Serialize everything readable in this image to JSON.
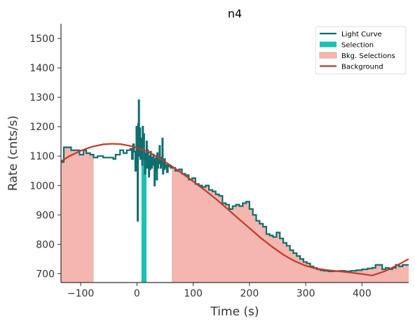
{
  "chart_data": {
    "type": "line",
    "title": "n4",
    "xlabel": "Time (s)",
    "ylabel": "Rate (cnts/s)",
    "xlim": [
      -135,
      483
    ],
    "ylim": [
      670,
      1550
    ],
    "xticks": [
      -100,
      0,
      100,
      200,
      300,
      400
    ],
    "yticks": [
      700,
      800,
      900,
      1000,
      1100,
      1200,
      1300,
      1400,
      1500
    ],
    "xtick_labels": [
      "−100",
      "0",
      "100",
      "200",
      "300",
      "400"
    ],
    "ytick_labels": [
      "700",
      "800",
      "900",
      "1000",
      "1100",
      "1200",
      "1300",
      "1400",
      "1500"
    ],
    "legend": {
      "position": "top-right",
      "entries": [
        {
          "label": "Light Curve",
          "kind": "line",
          "color": "#0f6e6e"
        },
        {
          "label": "Selection",
          "kind": "patch",
          "color": "#1fbfb4"
        },
        {
          "label": "Bkg. Selections",
          "kind": "patch",
          "color": "#f4b6ae"
        },
        {
          "label": "Background",
          "kind": "line",
          "color": "#c0392b"
        }
      ]
    },
    "colors": {
      "light_curve": "#0f6e6e",
      "selection": "#1fbfb4",
      "bkg_selection": "#f4b6ae",
      "bkg_edge": "#e8a59c",
      "background": "#c0392b"
    },
    "selection": [
      [
        8,
        17
      ]
    ],
    "bkg_selections": [
      [
        -135,
        -77
      ],
      [
        62,
        483
      ]
    ],
    "light_curve": [
      [
        -135,
        1080
      ],
      [
        -130,
        1130
      ],
      [
        -122,
        1130
      ],
      [
        -117,
        1120
      ],
      [
        -110,
        1120
      ],
      [
        -102,
        1105
      ],
      [
        -95,
        1120
      ],
      [
        -90,
        1110
      ],
      [
        -83,
        1105
      ],
      [
        -77,
        1095
      ],
      [
        -70,
        1100
      ],
      [
        -60,
        1095
      ],
      [
        -50,
        1095
      ],
      [
        -42,
        1090
      ],
      [
        -38,
        1105
      ],
      [
        -30,
        1120
      ],
      [
        -24,
        1110
      ],
      [
        -18,
        1120
      ],
      [
        -12,
        1125
      ],
      [
        -9,
        1090
      ],
      [
        -7,
        1140
      ],
      [
        -5,
        1115
      ],
      [
        -3,
        1050
      ],
      [
        -1,
        1200
      ],
      [
        0,
        1120
      ],
      [
        1,
        880
      ],
      [
        2,
        1210
      ],
      [
        3,
        1290
      ],
      [
        4,
        1100
      ],
      [
        5,
        1195
      ],
      [
        6,
        1090
      ],
      [
        7,
        1130
      ],
      [
        8,
        1160
      ],
      [
        9,
        1070
      ],
      [
        10,
        1200
      ],
      [
        11,
        1140
      ],
      [
        12,
        1175
      ],
      [
        13,
        1090
      ],
      [
        14,
        1040
      ],
      [
        15,
        1110
      ],
      [
        16,
        1090
      ],
      [
        17,
        1150
      ],
      [
        18,
        1060
      ],
      [
        19,
        1120
      ],
      [
        20,
        1075
      ],
      [
        21,
        1030
      ],
      [
        22,
        1100
      ],
      [
        23,
        1055
      ],
      [
        24,
        1115
      ],
      [
        25,
        1080
      ],
      [
        26,
        1060
      ],
      [
        27,
        1095
      ],
      [
        28,
        1070
      ],
      [
        29,
        1105
      ],
      [
        30,
        1085
      ],
      [
        31,
        1000
      ],
      [
        32,
        1090
      ],
      [
        33,
        1050
      ],
      [
        34,
        1100
      ],
      [
        35,
        1020
      ],
      [
        36,
        1110
      ],
      [
        37,
        1060
      ],
      [
        38,
        1085
      ],
      [
        39,
        1075
      ],
      [
        40,
        1135
      ],
      [
        41,
        1080
      ],
      [
        42,
        1060
      ],
      [
        43,
        1095
      ],
      [
        44,
        1070
      ],
      [
        45,
        1160
      ],
      [
        46,
        1040
      ],
      [
        47,
        1085
      ],
      [
        48,
        1055
      ],
      [
        49,
        1090
      ],
      [
        50,
        1060
      ],
      [
        51,
        1070
      ],
      [
        53,
        1045
      ],
      [
        55,
        1070
      ],
      [
        57,
        1065
      ],
      [
        60,
        1060
      ],
      [
        62,
        1060
      ],
      [
        68,
        1050
      ],
      [
        75,
        1055
      ],
      [
        80,
        1040
      ],
      [
        86,
        1035
      ],
      [
        92,
        1020
      ],
      [
        98,
        1025
      ],
      [
        104,
        1005
      ],
      [
        110,
        1000
      ],
      [
        116,
        995
      ],
      [
        122,
        1000
      ],
      [
        128,
        985
      ],
      [
        134,
        980
      ],
      [
        140,
        970
      ],
      [
        146,
        965
      ],
      [
        152,
        940
      ],
      [
        158,
        935
      ],
      [
        164,
        920
      ],
      [
        170,
        930
      ],
      [
        176,
        935
      ],
      [
        182,
        930
      ],
      [
        188,
        940
      ],
      [
        194,
        945
      ],
      [
        200,
        920
      ],
      [
        206,
        900
      ],
      [
        212,
        880
      ],
      [
        218,
        870
      ],
      [
        224,
        860
      ],
      [
        230,
        835
      ],
      [
        236,
        830
      ],
      [
        242,
        825
      ],
      [
        248,
        840
      ],
      [
        254,
        820
      ],
      [
        260,
        805
      ],
      [
        266,
        795
      ],
      [
        272,
        780
      ],
      [
        278,
        770
      ],
      [
        284,
        760
      ],
      [
        290,
        750
      ],
      [
        296,
        740
      ],
      [
        302,
        735
      ],
      [
        308,
        725
      ],
      [
        314,
        720
      ],
      [
        320,
        715
      ],
      [
        326,
        712
      ],
      [
        332,
        710
      ],
      [
        340,
        708
      ],
      [
        350,
        709
      ],
      [
        360,
        710
      ],
      [
        370,
        708
      ],
      [
        380,
        710
      ],
      [
        390,
        712
      ],
      [
        400,
        715
      ],
      [
        410,
        718
      ],
      [
        418,
        720
      ],
      [
        424,
        730
      ],
      [
        430,
        730
      ],
      [
        436,
        715
      ],
      [
        442,
        720
      ],
      [
        448,
        715
      ],
      [
        454,
        720
      ],
      [
        460,
        730
      ],
      [
        466,
        725
      ],
      [
        472,
        730
      ],
      [
        478,
        730
      ]
    ],
    "background": [
      [
        -135,
        1082
      ],
      [
        -120,
        1100
      ],
      [
        -100,
        1118
      ],
      [
        -80,
        1132
      ],
      [
        -60,
        1140
      ],
      [
        -45,
        1142
      ],
      [
        -30,
        1141
      ],
      [
        -10,
        1134
      ],
      [
        0,
        1128
      ],
      [
        20,
        1115
      ],
      [
        40,
        1093
      ],
      [
        60,
        1068
      ],
      [
        80,
        1042
      ],
      [
        100,
        1014
      ],
      [
        120,
        985
      ],
      [
        140,
        955
      ],
      [
        160,
        922
      ],
      [
        180,
        888
      ],
      [
        200,
        855
      ],
      [
        220,
        822
      ],
      [
        240,
        792
      ],
      [
        260,
        765
      ],
      [
        280,
        743
      ],
      [
        300,
        727
      ],
      [
        320,
        717
      ],
      [
        340,
        712
      ],
      [
        360,
        708
      ],
      [
        380,
        704
      ],
      [
        400,
        699
      ],
      [
        418,
        694
      ],
      [
        440,
        708
      ],
      [
        460,
        726
      ],
      [
        483,
        750
      ]
    ]
  }
}
